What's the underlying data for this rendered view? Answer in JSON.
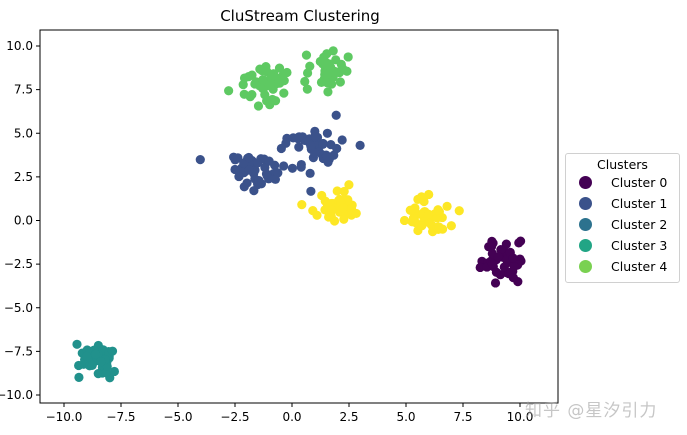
{
  "chart_data": {
    "type": "scatter",
    "title": "CluStream Clustering",
    "xlabel": "",
    "ylabel": "",
    "xlim": [
      -10.5,
      10.8
    ],
    "ylim": [
      -10.3,
      10.8
    ],
    "xticks": [
      "-10.0",
      "-7.5",
      "-5.0",
      "-2.5",
      "0.0",
      "2.5",
      "5.0",
      "7.5",
      "10.0"
    ],
    "yticks": [
      "10.0",
      "7.5",
      "5.0",
      "2.5",
      "0.0",
      "-2.5",
      "-5.0",
      "-7.5",
      "-10.0"
    ],
    "grid": false,
    "legend": {
      "title": "Clusters",
      "position": "right-outside",
      "entries": [
        "Cluster 0",
        "Cluster 1",
        "Cluster 2",
        "Cluster 3",
        "Cluster 4"
      ]
    },
    "series": [
      {
        "name": "Cluster 0",
        "color": "#440154",
        "groups": [
          {
            "cx": 9.2,
            "cy": -2.4,
            "sx": 0.45,
            "sy": 0.55,
            "n": 45
          }
        ]
      },
      {
        "name": "Cluster 1",
        "color": "#3b528b",
        "groups": [
          {
            "cx": -1.5,
            "cy": 2.8,
            "sx": 0.6,
            "sy": 0.55,
            "n": 45
          },
          {
            "cx": 1.0,
            "cy": 4.3,
            "sx": 0.6,
            "sy": 0.6,
            "n": 45
          }
        ]
      },
      {
        "name": "Cluster 2",
        "color": "#21918c",
        "groups": [
          {
            "cx": -8.6,
            "cy": -8.0,
            "sx": 0.5,
            "sy": 0.55,
            "n": 40
          }
        ]
      },
      {
        "name": "Cluster 3",
        "color": "#5ec962",
        "groups": [
          {
            "cx": -1.2,
            "cy": 7.7,
            "sx": 0.55,
            "sy": 0.55,
            "n": 40
          },
          {
            "cx": 1.5,
            "cy": 8.5,
            "sx": 0.55,
            "sy": 0.5,
            "n": 40
          }
        ]
      },
      {
        "name": "Cluster 4",
        "color": "#fde725",
        "groups": [
          {
            "cx": 1.9,
            "cy": 0.8,
            "sx": 0.55,
            "sy": 0.5,
            "n": 40
          },
          {
            "cx": 5.9,
            "cy": 0.4,
            "sx": 0.5,
            "sy": 0.5,
            "n": 40
          }
        ]
      }
    ],
    "legend_colors": [
      "#440154",
      "#3b528b",
      "#2c728e",
      "#21a585",
      "#7ad151"
    ]
  },
  "watermark": "知乎 @星汐引力"
}
